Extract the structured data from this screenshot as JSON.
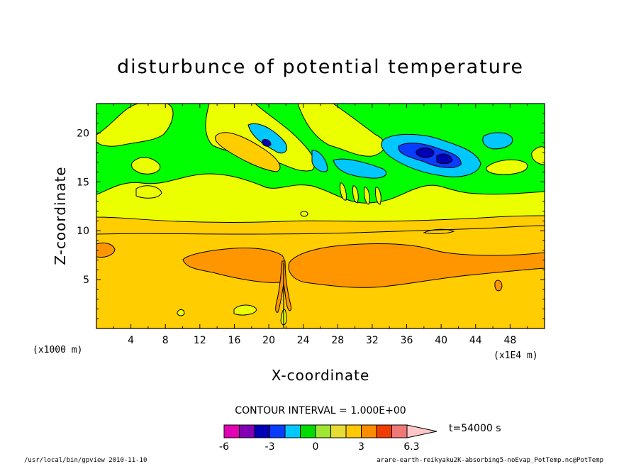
{
  "chart_data": {
    "type": "heatmap",
    "title": "disturbunce of potential temperature",
    "xlabel": "X-coordinate",
    "ylabel": "Z-coordinate",
    "x_unit_label": "(x1E4 m)",
    "z_unit_label": "(x1000 m)",
    "xlim": [
      0,
      52
    ],
    "ylim": [
      0,
      23
    ],
    "x_ticks": [
      "4",
      "8",
      "12",
      "16",
      "20",
      "24",
      "28",
      "32",
      "36",
      "40",
      "44",
      "48"
    ],
    "x_tick_values": [
      4,
      8,
      12,
      16,
      20,
      24,
      28,
      32,
      36,
      40,
      44,
      48
    ],
    "y_ticks": [
      "5",
      "10",
      "15",
      "20"
    ],
    "y_tick_values": [
      5,
      10,
      15,
      20
    ],
    "contour_interval_label": "CONTOUR INTERVAL = 1.000E+00",
    "time_label": "t=54000 s",
    "colorbar": {
      "labels": [
        "-6",
        "-3",
        "0",
        "3",
        "6.3"
      ],
      "label_values": [
        -6,
        -3,
        0,
        3,
        6.3
      ],
      "colors": [
        "#e100b4",
        "#8200b4",
        "#0000b4",
        "#0a3cff",
        "#00c8ff",
        "#00dc00",
        "#a0e632",
        "#e6dc32",
        "#ffc800",
        "#fa8c00",
        "#f03c00",
        "#f07878",
        "#ffc8c8"
      ]
    },
    "levels": {
      "cyan": "#00ffff",
      "light_blue": "#0096ff",
      "blue": "#0000ff",
      "green": "#00ff00",
      "yellow_green": "#ebff00",
      "gold": "#ffcd00",
      "orange": "#ff9600"
    }
  },
  "footer": {
    "left": "/usr/local/bin/gpview  2010-11-10",
    "right": "arare-earth-reikyaku2K-absorbing5-noEvap_PotTemp.nc@PotTemp"
  }
}
